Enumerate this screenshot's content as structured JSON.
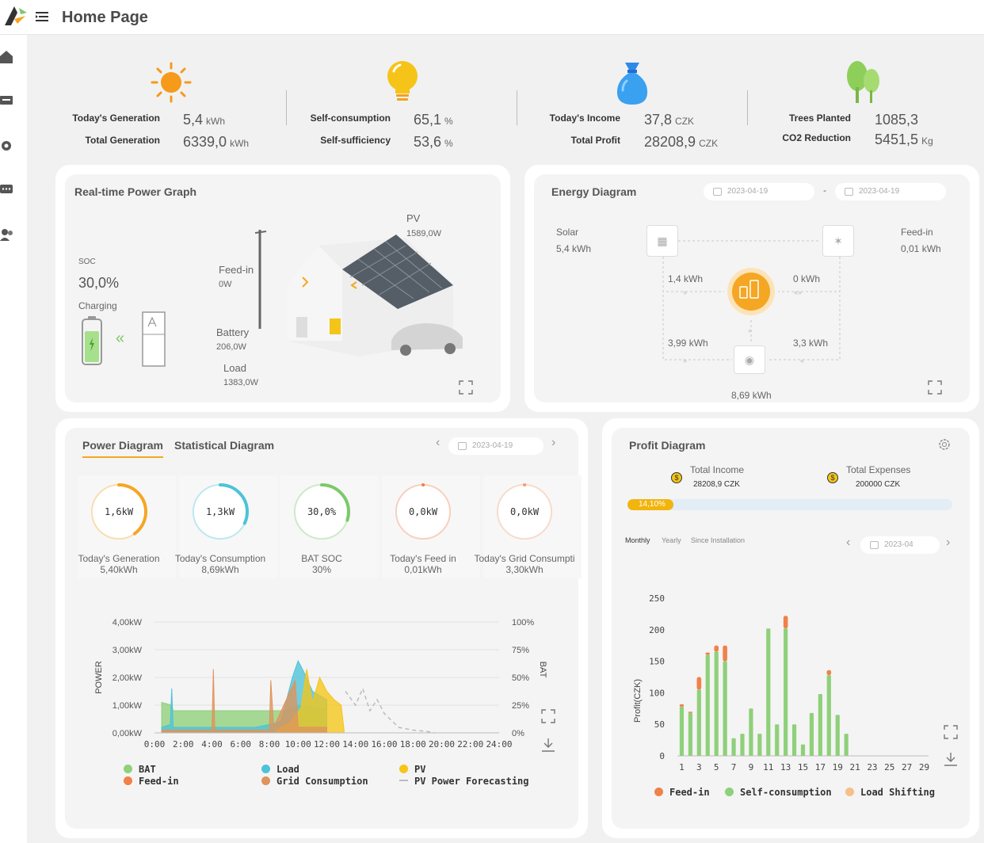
{
  "header": {
    "title": "Home Page"
  },
  "sidebar": {
    "items": [
      "home-icon",
      "device-icon",
      "gear-icon",
      "message-icon",
      "users-icon"
    ]
  },
  "kpis": [
    {
      "icon": "sun-icon",
      "rows": [
        {
          "label": "Today's Generation",
          "value": "5,4",
          "unit": "kWh"
        },
        {
          "label": "Total Generation",
          "value": "6339,0",
          "unit": "kWh"
        }
      ]
    },
    {
      "icon": "bulb-icon",
      "rows": [
        {
          "label": "Self-consumption",
          "value": "65,1",
          "unit": "%"
        },
        {
          "label": "Self-sufficiency",
          "value": "53,6",
          "unit": "%"
        }
      ]
    },
    {
      "icon": "money-bag-icon",
      "rows": [
        {
          "label": "Today's Income",
          "value": "37,8",
          "unit": "CZK"
        },
        {
          "label": "Total Profit",
          "value": "28208,9",
          "unit": "CZK"
        }
      ]
    },
    {
      "icon": "tree-icon",
      "rows": [
        {
          "label": "Trees Planted",
          "value": "1085,3",
          "unit": ""
        },
        {
          "label": "CO2 Reduction",
          "value": "5451,5",
          "unit": "Kg"
        }
      ]
    }
  ],
  "realtime": {
    "title": "Real-time Power Graph",
    "soc_label": "SOC",
    "soc_value": "30,0%",
    "status": "Charging",
    "pv_label": "PV",
    "pv_value": "1589,0W",
    "feedin_label": "Feed-in",
    "feedin_value": "0W",
    "battery_label": "Battery",
    "battery_value": "206,0W",
    "load_label": "Load",
    "load_value": "1383,0W"
  },
  "energy": {
    "title": "Energy Diagram",
    "date_from": "2023-04-19",
    "date_sep": "-",
    "date_to": "2023-04-19",
    "solar_label": "Solar",
    "solar_value": "5,4 kWh",
    "feedin_label": "Feed-in",
    "feedin_value": "0,01 kWh",
    "solar_to_bat": "1,4 kWh",
    "grid_to_bat": "0 kWh",
    "solar_to_load": "3,99 kWh",
    "grid_to_load": "3,3 kWh",
    "load_total": "8,69 kWh"
  },
  "power": {
    "tab_active": "Power Diagram",
    "tab_other": "Statistical Diagram",
    "date": "2023-04-19",
    "gauges": [
      {
        "value": "1,6kW",
        "label": "Today's Generation",
        "sub": "5,40kWh",
        "color": "#f5a623",
        "fill": 0.4
      },
      {
        "value": "1,3kW",
        "label": "Today's Consumption",
        "sub": "8,69kWh",
        "color": "#4dc3d8",
        "fill": 0.32
      },
      {
        "value": "30,0%",
        "label": "BAT SOC",
        "sub": "30%",
        "color": "#7cc96a",
        "fill": 0.3
      },
      {
        "value": "0,0kW",
        "label": "Today's Feed in",
        "sub": "0,01kWh",
        "color": "#f0814a",
        "fill": 0.0
      },
      {
        "value": "0,0kW",
        "label": "Today's Grid Consumpti",
        "sub": "3,30kWh",
        "color": "#f0a070",
        "fill": 0.0
      }
    ],
    "yticks": [
      "4,00kW",
      "3,00kW",
      "2,00kW",
      "1,00kW",
      "0,00kW"
    ],
    "rticks": [
      "100%",
      "75%",
      "50%",
      "25%",
      "0%"
    ],
    "xticks": [
      "0:00",
      "2:00",
      "4:00",
      "6:00",
      "8:00",
      "10:00",
      "12:00",
      "14:00",
      "16:00",
      "18:00",
      "20:00",
      "22:00",
      "24:00"
    ],
    "ylabel": "POWER",
    "rlabel": "BAT",
    "legend": [
      {
        "name": "BAT",
        "color": "#8fd07a"
      },
      {
        "name": "Load",
        "color": "#4dc3d8"
      },
      {
        "name": "PV",
        "color": "#f5c518"
      },
      {
        "name": "Feed-in",
        "color": "#f0814a"
      },
      {
        "name": "Grid Consumption",
        "color": "#e0935a"
      },
      {
        "name": "PV Power Forecasting",
        "color": "#bbbbbb"
      }
    ]
  },
  "profit": {
    "title": "Profit Diagram",
    "income_label": "Total Income",
    "income_value": "28208,9 CZK",
    "expense_label": "Total Expenses",
    "expense_value": "200000 CZK",
    "progress_label": "14,10%",
    "progress": 0.141,
    "tabs": [
      "Monthly",
      "Yearly",
      "Since Installation"
    ],
    "date": "2023-04",
    "ylabel": "Profit(CZK)",
    "legend": [
      {
        "name": "Feed-in",
        "color": "#f0814a"
      },
      {
        "name": "Self-consumption",
        "color": "#8fd07a"
      },
      {
        "name": "Load Shifting",
        "color": "#f5c08a"
      }
    ]
  },
  "chart_data": [
    {
      "type": "area",
      "title": "",
      "ylabel": "POWER",
      "y2label": "BAT",
      "ylim": [
        0,
        4
      ],
      "y2lim": [
        0,
        100
      ],
      "xlim": [
        0,
        24
      ],
      "series": [
        {
          "name": "BAT",
          "points": [
            [
              0.5,
              1.1
            ],
            [
              1.2,
              1.0
            ],
            [
              1.3,
              0.8
            ],
            [
              2,
              0.8
            ],
            [
              4,
              0.8
            ],
            [
              6,
              0.8
            ],
            [
              8,
              0.8
            ],
            [
              9,
              0.8
            ],
            [
              10,
              1.0
            ],
            [
              11.5,
              0.9
            ],
            [
              12,
              0.9
            ]
          ]
        },
        {
          "name": "Load",
          "points": [
            [
              0.5,
              0.2
            ],
            [
              1.1,
              0.3
            ],
            [
              1.2,
              1.6
            ],
            [
              1.3,
              0.2
            ],
            [
              4,
              0.2
            ],
            [
              7,
              0.2
            ],
            [
              8,
              0.3
            ],
            [
              8.8,
              0.4
            ],
            [
              9.6,
              2.0
            ],
            [
              10.0,
              2.6
            ],
            [
              10.4,
              2.2
            ],
            [
              11,
              1.5
            ],
            [
              12,
              1.2
            ]
          ]
        },
        {
          "name": "PV",
          "points": [
            [
              8.5,
              0.1
            ],
            [
              9.5,
              0.4
            ],
            [
              10.2,
              0.9
            ],
            [
              10.6,
              2.3
            ],
            [
              11,
              1.1
            ],
            [
              11.5,
              2.0
            ],
            [
              12,
              1.5
            ],
            [
              12.5,
              1.2
            ],
            [
              13,
              1.0
            ],
            [
              13.2,
              0.1
            ]
          ]
        },
        {
          "name": "Grid Consumption",
          "points": [
            [
              0.5,
              0.1
            ],
            [
              4,
              0.1
            ],
            [
              4.1,
              2.3
            ],
            [
              4.2,
              0.1
            ],
            [
              8,
              0.1
            ],
            [
              8.1,
              1.9
            ],
            [
              8.3,
              0.2
            ],
            [
              9.8,
              1.9
            ],
            [
              10,
              0.2
            ],
            [
              12,
              0.2
            ]
          ]
        },
        {
          "name": "PV Power Forecasting",
          "points": [
            [
              13.3,
              1.5
            ],
            [
              14,
              1.0
            ],
            [
              14.5,
              1.6
            ],
            [
              15,
              0.8
            ],
            [
              15.5,
              1.2
            ],
            [
              16,
              0.7
            ],
            [
              17,
              0.2
            ],
            [
              18,
              0.1
            ],
            [
              19,
              0.05
            ],
            [
              19.5,
              0.0
            ]
          ]
        }
      ]
    },
    {
      "type": "bar",
      "title": "",
      "ylabel": "Profit(CZK)",
      "ylim": [
        0,
        250
      ],
      "categories": [
        "1",
        "2",
        "3",
        "4",
        "5",
        "6",
        "7",
        "8",
        "9",
        "10",
        "11",
        "12",
        "13",
        "14",
        "15",
        "16",
        "17",
        "18",
        "19",
        "20",
        "21",
        "22",
        "23",
        "24",
        "25",
        "26",
        "27",
        "28",
        "29"
      ],
      "series": [
        {
          "name": "Self-consumption",
          "values": [
            78,
            68,
            105,
            160,
            165,
            150,
            28,
            35,
            75,
            35,
            202,
            50,
            202,
            50,
            18,
            68,
            98,
            128,
            65,
            35,
            0,
            0,
            0,
            0,
            0,
            0,
            0,
            0,
            0
          ]
        },
        {
          "name": "Feed-in",
          "values": [
            4,
            2,
            20,
            4,
            10,
            25,
            0,
            0,
            0,
            0,
            0,
            0,
            20,
            0,
            0,
            0,
            0,
            8,
            0,
            0,
            0,
            0,
            0,
            0,
            0,
            0,
            0,
            0,
            0
          ]
        }
      ]
    }
  ]
}
